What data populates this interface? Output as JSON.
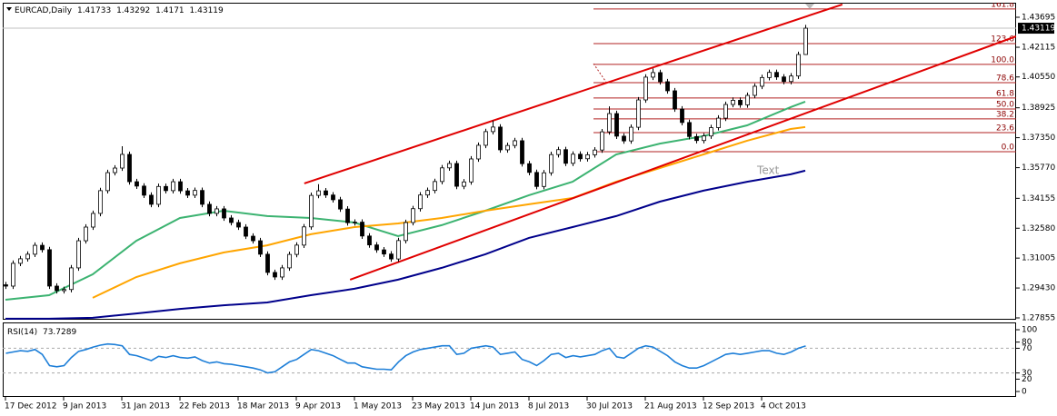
{
  "chart_data": {
    "type": "candlestick",
    "symbol": "EURCAD,Daily",
    "categories": [
      "17 Dec 2012",
      null,
      null,
      null,
      null,
      null,
      null,
      null,
      "9 Jan 2013",
      null,
      null,
      null,
      null,
      null,
      null,
      null,
      "31 Jan 2013",
      null,
      null,
      null,
      null,
      null,
      null,
      null,
      "22 Feb 2013",
      null,
      null,
      null,
      null,
      null,
      null,
      null,
      "18 Mar 2013",
      null,
      null,
      null,
      null,
      null,
      null,
      null,
      "9 Apr 2013",
      null,
      null,
      null,
      null,
      null,
      null,
      null,
      "1 May 2013",
      null,
      null,
      null,
      null,
      null,
      null,
      null,
      "23 May 2013",
      null,
      null,
      null,
      null,
      null,
      null,
      null,
      "14 Jun 2013",
      null,
      null,
      null,
      null,
      null,
      null,
      null,
      "8 Jul 2013",
      null,
      null,
      null,
      null,
      null,
      null,
      null,
      "30 Jul 2013",
      null,
      null,
      null,
      null,
      null,
      null,
      null,
      "21 Aug 2013",
      null,
      null,
      null,
      null,
      null,
      null,
      null,
      "12 Sep 2013",
      null,
      null,
      null,
      null,
      null,
      null,
      null,
      "4 Oct 2013",
      null,
      null,
      null,
      null,
      null,
      null
    ],
    "open": [
      1.296,
      1.2953,
      1.3073,
      1.3097,
      1.3121,
      1.3168,
      1.3145,
      1.2953,
      1.2929,
      1.2935,
      1.3049,
      1.3192,
      1.3264,
      1.3336,
      1.3456,
      1.3551,
      1.3575,
      1.3647,
      1.3503,
      1.348,
      1.3432,
      1.3384,
      1.3478,
      1.3456,
      1.3503,
      1.3455,
      1.3432,
      1.3457,
      1.3384,
      1.3336,
      1.336,
      1.3312,
      1.3288,
      1.3264,
      1.3216,
      1.3192,
      1.3121,
      1.3025,
      1.3001,
      1.3049,
      1.312,
      1.3169,
      1.3265,
      1.3431,
      1.3455,
      1.3433,
      1.3408,
      1.3359,
      1.3287,
      1.329,
      1.3217,
      1.317,
      1.3144,
      1.3122,
      1.3096,
      1.3193,
      1.3288,
      1.3361,
      1.3433,
      1.3457,
      1.3504,
      1.3576,
      1.3599,
      1.3479,
      1.3502,
      1.3623,
      1.3695,
      1.3767,
      1.3791,
      1.3671,
      1.3694,
      1.3719,
      1.3598,
      1.3552,
      1.3478,
      1.355,
      1.3646,
      1.3672,
      1.36,
      1.3648,
      1.3624,
      1.3645,
      1.367,
      1.3766,
      1.3862,
      1.3743,
      1.3718,
      1.379,
      1.3934,
      1.4054,
      1.4078,
      1.403,
      1.3982,
      1.3886,
      1.3815,
      1.3741,
      1.372,
      1.3744,
      1.3788,
      1.3838,
      1.391,
      1.3932,
      1.3908,
      1.3958,
      1.4006,
      1.4052,
      1.4079,
      1.4055,
      1.4031,
      1.406,
      1.41733
    ],
    "high": [
      1.2975,
      1.3088,
      1.3112,
      1.3136,
      1.3183,
      1.3183,
      1.316,
      1.2968,
      1.295,
      1.3064,
      1.3207,
      1.3279,
      1.3351,
      1.3471,
      1.3566,
      1.359,
      1.369,
      1.3662,
      1.3518,
      1.3495,
      1.3447,
      1.3493,
      1.3493,
      1.3518,
      1.3518,
      1.347,
      1.3472,
      1.3472,
      1.3399,
      1.3375,
      1.3375,
      1.3327,
      1.3303,
      1.3279,
      1.3231,
      1.3207,
      1.3136,
      1.304,
      1.3064,
      1.3135,
      1.3184,
      1.328,
      1.3446,
      1.349,
      1.347,
      1.3448,
      1.3423,
      1.3374,
      1.3305,
      1.3305,
      1.3232,
      1.3185,
      1.3159,
      1.3137,
      1.3208,
      1.3303,
      1.3376,
      1.3448,
      1.3472,
      1.3519,
      1.3591,
      1.3614,
      1.3614,
      1.3517,
      1.3638,
      1.371,
      1.3782,
      1.3826,
      1.3806,
      1.3709,
      1.3734,
      1.3734,
      1.3613,
      1.3567,
      1.3565,
      1.3661,
      1.3687,
      1.3687,
      1.3663,
      1.3663,
      1.366,
      1.3685,
      1.3781,
      1.39,
      1.3877,
      1.3758,
      1.3805,
      1.3949,
      1.4069,
      1.41,
      1.4093,
      1.4045,
      1.3997,
      1.3901,
      1.383,
      1.3756,
      1.3759,
      1.3803,
      1.3853,
      1.3925,
      1.3947,
      1.3947,
      1.3973,
      1.4021,
      1.4067,
      1.4094,
      1.4094,
      1.407,
      1.4075,
      1.4188,
      1.43292
    ],
    "low": [
      1.2938,
      1.2938,
      1.3058,
      1.3082,
      1.3106,
      1.313,
      1.2938,
      1.2914,
      1.2914,
      1.292,
      1.3034,
      1.3177,
      1.3249,
      1.3321,
      1.3441,
      1.3536,
      1.356,
      1.3488,
      1.3465,
      1.3417,
      1.3369,
      1.3369,
      1.3441,
      1.3441,
      1.344,
      1.3417,
      1.3417,
      1.3369,
      1.3321,
      1.3321,
      1.3297,
      1.3273,
      1.3249,
      1.3201,
      1.3177,
      1.3106,
      1.301,
      1.2986,
      1.2986,
      1.3034,
      1.3105,
      1.3154,
      1.325,
      1.3416,
      1.3418,
      1.3393,
      1.3344,
      1.3272,
      1.3272,
      1.3202,
      1.3155,
      1.3129,
      1.3107,
      1.3081,
      1.3081,
      1.3178,
      1.3273,
      1.3346,
      1.3418,
      1.3442,
      1.3489,
      1.3561,
      1.3464,
      1.3464,
      1.3487,
      1.3608,
      1.368,
      1.3752,
      1.3656,
      1.3656,
      1.3679,
      1.3583,
      1.3537,
      1.3463,
      1.3463,
      1.3535,
      1.3631,
      1.3585,
      1.3585,
      1.3609,
      1.3609,
      1.363,
      1.3655,
      1.3751,
      1.3728,
      1.3703,
      1.3703,
      1.3775,
      1.3919,
      1.4039,
      1.4015,
      1.3967,
      1.3871,
      1.38,
      1.3726,
      1.3705,
      1.3705,
      1.3729,
      1.3773,
      1.3823,
      1.3895,
      1.3893,
      1.3893,
      1.3943,
      1.3991,
      1.4037,
      1.404,
      1.4016,
      1.4016,
      1.4045,
      1.4171
    ],
    "close": [
      1.2953,
      1.3073,
      1.3097,
      1.3121,
      1.3168,
      1.3145,
      1.2953,
      1.2929,
      1.2935,
      1.3049,
      1.3192,
      1.3264,
      1.3336,
      1.3456,
      1.3551,
      1.3575,
      1.3647,
      1.3503,
      1.348,
      1.3432,
      1.3384,
      1.3478,
      1.3456,
      1.3503,
      1.3455,
      1.3432,
      1.3457,
      1.3384,
      1.3336,
      1.336,
      1.3312,
      1.3288,
      1.3264,
      1.3216,
      1.3192,
      1.3121,
      1.3025,
      1.3001,
      1.3049,
      1.312,
      1.3169,
      1.3265,
      1.3431,
      1.3455,
      1.3433,
      1.3408,
      1.3359,
      1.3287,
      1.329,
      1.3217,
      1.317,
      1.3144,
      1.3122,
      1.3096,
      1.3193,
      1.3288,
      1.3361,
      1.3433,
      1.3457,
      1.3504,
      1.3576,
      1.3599,
      1.3479,
      1.3502,
      1.3623,
      1.3695,
      1.3767,
      1.3791,
      1.3671,
      1.3694,
      1.3719,
      1.3598,
      1.3552,
      1.3478,
      1.355,
      1.3646,
      1.3672,
      1.36,
      1.3648,
      1.3624,
      1.3645,
      1.367,
      1.3766,
      1.3862,
      1.3743,
      1.3718,
      1.379,
      1.3934,
      1.4054,
      1.4078,
      1.403,
      1.3982,
      1.3886,
      1.3815,
      1.3741,
      1.372,
      1.3744,
      1.3788,
      1.3838,
      1.391,
      1.3932,
      1.3908,
      1.3958,
      1.4006,
      1.4052,
      1.4079,
      1.4055,
      1.4031,
      1.406,
      1.41733,
      1.43119
    ],
    "ylim": [
      1.27759,
      1.44461
    ],
    "yticks": [
      1.43695,
      1.42115,
      {
        "value": 1.4055,
        "label": "1.40550"
      },
      1.38925,
      {
        "value": 1.3735,
        "label": "1.37350"
      },
      {
        "value": 1.3577,
        "label": "1.35770"
      },
      1.34155,
      {
        "value": 1.3258,
        "label": "1.32580"
      },
      1.31005,
      {
        "value": 1.2943,
        "label": "1.29430"
      },
      1.27855
    ],
    "moving_averages": [
      {
        "color": "#3cb371",
        "x": [
          0,
          6,
          12,
          18,
          24,
          30,
          36,
          42,
          48,
          54,
          60,
          66,
          72,
          78,
          84,
          90,
          96,
          102,
          108,
          110
        ],
        "values": [
          1.2881,
          1.2905,
          1.3015,
          1.3192,
          1.3312,
          1.335,
          1.3322,
          1.3312,
          1.3288,
          1.3216,
          1.3274,
          1.335,
          1.3432,
          1.3503,
          1.3647,
          1.3704,
          1.3743,
          1.38,
          1.3896,
          1.3925
        ]
      },
      {
        "color": "#ffa500",
        "x": [
          0,
          6,
          12,
          18,
          24,
          30,
          36,
          42,
          48,
          54,
          60,
          66,
          72,
          78,
          84,
          90,
          96,
          102,
          108,
          110
        ],
        "values": [
          null,
          null,
          1.2891,
          1.3001,
          1.3073,
          1.313,
          1.3168,
          1.3226,
          1.3264,
          1.3283,
          1.3312,
          1.335,
          1.3384,
          1.3417,
          1.3503,
          1.3575,
          1.3647,
          1.3719,
          1.3781,
          1.3791
        ]
      },
      {
        "color": "#00008b",
        "x": [
          0,
          6,
          12,
          18,
          24,
          30,
          36,
          42,
          48,
          54,
          60,
          66,
          72,
          78,
          84,
          90,
          96,
          102,
          108,
          110
        ],
        "values": [
          1.2781,
          1.2781,
          1.2786,
          1.2809,
          1.2833,
          1.2852,
          1.2867,
          1.2905,
          1.2939,
          1.2987,
          1.3049,
          1.3121,
          1.3207,
          1.3264,
          1.3322,
          1.3398,
          1.3456,
          1.3503,
          1.3542,
          1.3561
        ]
      }
    ],
    "fibonacci": {
      "color": "#b22222",
      "levels": [
        {
          "label": "161.8",
          "value": 1.4413
        },
        {
          "label": "123.6",
          "value": 1.4231
        },
        {
          "label": "100.0",
          "value": 1.4121
        },
        {
          "label": "78.6",
          "value": 1.4025
        },
        {
          "label": "61.8",
          "value": 1.3944
        },
        {
          "label": "50.0",
          "value": 1.3886
        },
        {
          "label": "38.2",
          "value": 1.3834
        },
        {
          "label": "23.6",
          "value": 1.3762
        },
        {
          "label": "0.0",
          "value": 1.3661
        }
      ]
    },
    "trendlines": [
      {
        "color": "#e00000",
        "x": [
          41.1,
          115.1
        ],
        "values": [
          1.3494,
          1.4437
        ]
      },
      {
        "color": "#e00000",
        "x": [
          47.4,
          139
        ],
        "values": [
          1.2987,
          1.4269
        ]
      }
    ],
    "annotation": {
      "text": "Text",
      "x": 104.9,
      "value": 1.3561
    },
    "rsi": {
      "name": "RSI(14)",
      "color": "#1e7fd8",
      "values": [
        62,
        64,
        66,
        65,
        68,
        60,
        42,
        40,
        42,
        55,
        65,
        68,
        72,
        75,
        77,
        76,
        74,
        60,
        58,
        54,
        50,
        57,
        55,
        58,
        55,
        54,
        56,
        50,
        46,
        48,
        45,
        44,
        42,
        40,
        38,
        35,
        30,
        32,
        40,
        48,
        52,
        60,
        68,
        66,
        62,
        58,
        52,
        46,
        46,
        40,
        38,
        36,
        36,
        35,
        48,
        58,
        64,
        68,
        70,
        72,
        74,
        74,
        60,
        62,
        70,
        72,
        74,
        72,
        60,
        62,
        64,
        52,
        48,
        42,
        50,
        60,
        62,
        55,
        58,
        56,
        58,
        60,
        66,
        70,
        56,
        54,
        62,
        70,
        74,
        72,
        65,
        58,
        48,
        42,
        38,
        38,
        42,
        48,
        54,
        60,
        62,
        60,
        62,
        64,
        66,
        66,
        62,
        60,
        64,
        70,
        73.7289
      ],
      "ylim": [
        -8.8,
        111.8
      ],
      "yticks": [
        100,
        80,
        70,
        30,
        20,
        0
      ],
      "levels": [
        70,
        30
      ]
    }
  }
}
